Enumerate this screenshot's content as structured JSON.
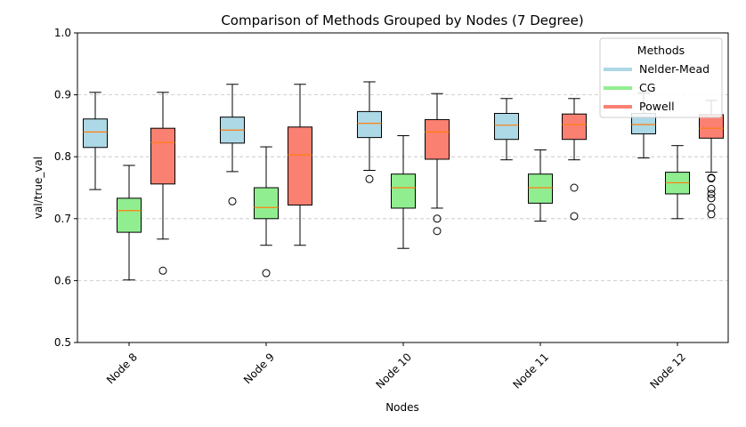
{
  "chart_data": {
    "type": "box",
    "title": "Comparison of Methods Grouped by Nodes (7 Degree)",
    "xlabel": "Nodes",
    "ylabel": "val/true_val",
    "ylim": [
      0.5,
      1.0
    ],
    "yticks": [
      0.5,
      0.6,
      0.7,
      0.8,
      0.9,
      1.0
    ],
    "ytick_labels": [
      "0.5",
      "0.6",
      "0.7",
      "0.8",
      "0.9",
      "1.0"
    ],
    "grid": "horizontal dashed",
    "categories": [
      "Node 8",
      "Node 9",
      "Node 10",
      "Node 11",
      "Node 12"
    ],
    "legend": {
      "title": "Methods",
      "placement": "top-right"
    },
    "series": [
      {
        "name": "Nelder-Mead",
        "color": "#add8e6",
        "boxes": [
          {
            "q1": 0.815,
            "median": 0.84,
            "q3": 0.861,
            "whisker_low": 0.747,
            "whisker_high": 0.904,
            "outliers": []
          },
          {
            "q1": 0.822,
            "median": 0.843,
            "q3": 0.864,
            "whisker_low": 0.776,
            "whisker_high": 0.917,
            "outliers": [
              0.728
            ]
          },
          {
            "q1": 0.831,
            "median": 0.854,
            "q3": 0.873,
            "whisker_low": 0.778,
            "whisker_high": 0.921,
            "outliers": [
              0.764
            ]
          },
          {
            "q1": 0.828,
            "median": 0.851,
            "q3": 0.87,
            "whisker_low": 0.795,
            "whisker_high": 0.894,
            "outliers": []
          },
          {
            "q1": 0.837,
            "median": 0.852,
            "q3": 0.87,
            "whisker_low": 0.798,
            "whisker_high": 0.903,
            "outliers": []
          }
        ]
      },
      {
        "name": "CG",
        "color": "#90ee90",
        "boxes": [
          {
            "q1": 0.678,
            "median": 0.713,
            "q3": 0.733,
            "whisker_low": 0.601,
            "whisker_high": 0.786,
            "outliers": []
          },
          {
            "q1": 0.7,
            "median": 0.718,
            "q3": 0.75,
            "whisker_low": 0.657,
            "whisker_high": 0.816,
            "outliers": [
              0.612
            ]
          },
          {
            "q1": 0.717,
            "median": 0.75,
            "q3": 0.772,
            "whisker_low": 0.652,
            "whisker_high": 0.834,
            "outliers": []
          },
          {
            "q1": 0.725,
            "median": 0.75,
            "q3": 0.772,
            "whisker_low": 0.696,
            "whisker_high": 0.811,
            "outliers": []
          },
          {
            "q1": 0.74,
            "median": 0.758,
            "q3": 0.775,
            "whisker_low": 0.7,
            "whisker_high": 0.818,
            "outliers": []
          }
        ]
      },
      {
        "name": "Powell",
        "color": "#fa8072",
        "boxes": [
          {
            "q1": 0.756,
            "median": 0.823,
            "q3": 0.846,
            "whisker_low": 0.667,
            "whisker_high": 0.904,
            "outliers": [
              0.616
            ]
          },
          {
            "q1": 0.722,
            "median": 0.803,
            "q3": 0.848,
            "whisker_low": 0.657,
            "whisker_high": 0.917,
            "outliers": []
          },
          {
            "q1": 0.796,
            "median": 0.84,
            "q3": 0.86,
            "whisker_low": 0.717,
            "whisker_high": 0.902,
            "outliers": [
              0.7,
              0.68
            ]
          },
          {
            "q1": 0.828,
            "median": 0.852,
            "q3": 0.869,
            "whisker_low": 0.795,
            "whisker_high": 0.894,
            "outliers": [
              0.75,
              0.704
            ]
          },
          {
            "q1": 0.83,
            "median": 0.846,
            "q3": 0.868,
            "whisker_low": 0.775,
            "whisker_high": 0.891,
            "outliers": [
              0.765,
              0.766,
              0.748,
              0.74,
              0.733,
              0.718,
              0.707
            ]
          }
        ]
      }
    ]
  }
}
